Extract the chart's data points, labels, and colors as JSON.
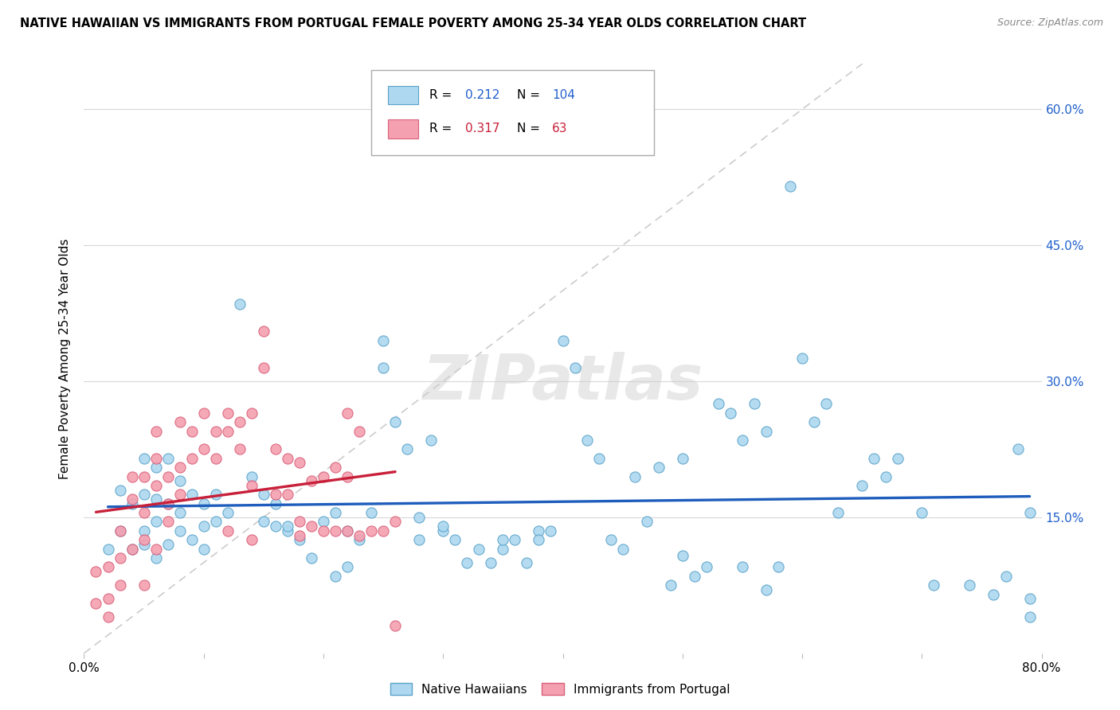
{
  "title": "NATIVE HAWAIIAN VS IMMIGRANTS FROM PORTUGAL FEMALE POVERTY AMONG 25-34 YEAR OLDS CORRELATION CHART",
  "source": "Source: ZipAtlas.com",
  "ylabel": "Female Poverty Among 25-34 Year Olds",
  "xlim": [
    0.0,
    0.8
  ],
  "ylim": [
    0.0,
    0.65
  ],
  "blue_color": "#ADD8F0",
  "blue_edge": "#5BA3C9",
  "pink_color": "#F4A0B0",
  "pink_edge": "#D9607A",
  "blue_line_color": "#1E5DBC",
  "pink_line_color": "#C8203A",
  "diag_line_color": "#cccccc",
  "R_blue": 0.212,
  "N_blue": 104,
  "R_pink": 0.317,
  "N_pink": 63,
  "watermark": "ZIPatlas",
  "legend_label_blue": "Native Hawaiians",
  "legend_label_pink": "Immigrants from Portugal",
  "blue_scatter_x": [
    0.02,
    0.03,
    0.03,
    0.04,
    0.04,
    0.05,
    0.05,
    0.05,
    0.05,
    0.06,
    0.06,
    0.06,
    0.06,
    0.07,
    0.07,
    0.07,
    0.08,
    0.08,
    0.08,
    0.09,
    0.09,
    0.1,
    0.1,
    0.1,
    0.11,
    0.11,
    0.12,
    0.13,
    0.14,
    0.15,
    0.15,
    0.16,
    0.16,
    0.17,
    0.17,
    0.18,
    0.19,
    0.2,
    0.21,
    0.22,
    0.23,
    0.24,
    0.25,
    0.25,
    0.26,
    0.27,
    0.28,
    0.28,
    0.29,
    0.3,
    0.3,
    0.31,
    0.32,
    0.33,
    0.34,
    0.35,
    0.35,
    0.36,
    0.37,
    0.38,
    0.38,
    0.39,
    0.4,
    0.41,
    0.42,
    0.43,
    0.44,
    0.45,
    0.46,
    0.47,
    0.48,
    0.49,
    0.5,
    0.5,
    0.51,
    0.52,
    0.53,
    0.54,
    0.55,
    0.56,
    0.57,
    0.58,
    0.59,
    0.6,
    0.61,
    0.62,
    0.63,
    0.65,
    0.66,
    0.67,
    0.68,
    0.7,
    0.71,
    0.74,
    0.76,
    0.77,
    0.78,
    0.79,
    0.79,
    0.79,
    0.21,
    0.22,
    0.55,
    0.57
  ],
  "blue_scatter_y": [
    0.115,
    0.135,
    0.18,
    0.115,
    0.165,
    0.135,
    0.12,
    0.175,
    0.215,
    0.105,
    0.145,
    0.17,
    0.205,
    0.12,
    0.165,
    0.215,
    0.135,
    0.155,
    0.19,
    0.125,
    0.175,
    0.115,
    0.14,
    0.165,
    0.145,
    0.175,
    0.155,
    0.385,
    0.195,
    0.145,
    0.175,
    0.14,
    0.165,
    0.135,
    0.14,
    0.125,
    0.105,
    0.145,
    0.155,
    0.135,
    0.125,
    0.155,
    0.345,
    0.315,
    0.255,
    0.225,
    0.15,
    0.125,
    0.235,
    0.135,
    0.14,
    0.125,
    0.1,
    0.115,
    0.1,
    0.115,
    0.125,
    0.125,
    0.1,
    0.135,
    0.125,
    0.135,
    0.345,
    0.315,
    0.235,
    0.215,
    0.125,
    0.115,
    0.195,
    0.145,
    0.205,
    0.075,
    0.108,
    0.215,
    0.085,
    0.095,
    0.275,
    0.265,
    0.235,
    0.275,
    0.245,
    0.095,
    0.515,
    0.325,
    0.255,
    0.275,
    0.155,
    0.185,
    0.215,
    0.195,
    0.215,
    0.155,
    0.075,
    0.075,
    0.065,
    0.085,
    0.225,
    0.155,
    0.06,
    0.04,
    0.085,
    0.095,
    0.095,
    0.07
  ],
  "pink_scatter_x": [
    0.01,
    0.01,
    0.02,
    0.02,
    0.02,
    0.03,
    0.03,
    0.03,
    0.04,
    0.04,
    0.04,
    0.05,
    0.05,
    0.05,
    0.05,
    0.06,
    0.06,
    0.06,
    0.06,
    0.07,
    0.07,
    0.07,
    0.08,
    0.08,
    0.08,
    0.09,
    0.09,
    0.1,
    0.1,
    0.11,
    0.11,
    0.12,
    0.12,
    0.13,
    0.13,
    0.14,
    0.14,
    0.15,
    0.15,
    0.16,
    0.16,
    0.17,
    0.17,
    0.18,
    0.18,
    0.18,
    0.19,
    0.19,
    0.2,
    0.2,
    0.21,
    0.21,
    0.22,
    0.22,
    0.22,
    0.23,
    0.23,
    0.24,
    0.25,
    0.26,
    0.12,
    0.14,
    0.26
  ],
  "pink_scatter_y": [
    0.09,
    0.055,
    0.095,
    0.06,
    0.04,
    0.135,
    0.105,
    0.075,
    0.17,
    0.195,
    0.115,
    0.125,
    0.155,
    0.195,
    0.075,
    0.115,
    0.185,
    0.215,
    0.245,
    0.195,
    0.165,
    0.145,
    0.255,
    0.205,
    0.175,
    0.215,
    0.245,
    0.265,
    0.225,
    0.245,
    0.215,
    0.245,
    0.265,
    0.225,
    0.255,
    0.185,
    0.265,
    0.355,
    0.315,
    0.175,
    0.225,
    0.175,
    0.215,
    0.145,
    0.13,
    0.21,
    0.14,
    0.19,
    0.135,
    0.195,
    0.135,
    0.205,
    0.135,
    0.195,
    0.265,
    0.13,
    0.245,
    0.135,
    0.135,
    0.145,
    0.135,
    0.125,
    0.03
  ]
}
